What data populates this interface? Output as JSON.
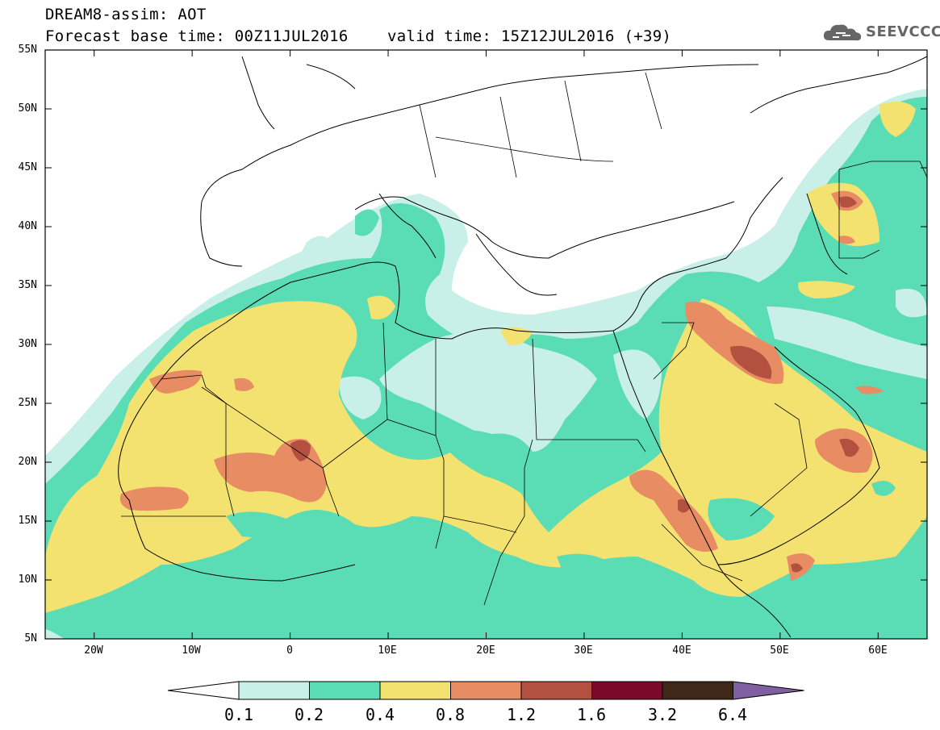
{
  "header": {
    "line1": "DREAM8-assim: AOT",
    "line2": "Forecast base time: 00Z11JUL2016",
    "line3": "valid time: 15Z12JUL2016 (+39)",
    "logo_text": "SEEVCCC",
    "logo_icon": "cloud-icon"
  },
  "map": {
    "lon_range": [
      -25,
      65
    ],
    "lat_range": [
      5,
      55
    ],
    "lat_ticks": [
      "55N",
      "50N",
      "45N",
      "40N",
      "35N",
      "30N",
      "25N",
      "20N",
      "15N",
      "10N",
      "5N"
    ],
    "lon_ticks": [
      "20W",
      "10W",
      "0",
      "10E",
      "20E",
      "30E",
      "40E",
      "50E",
      "60E"
    ],
    "colors": {
      "c01": "#c8f0e8",
      "c02": "#5adcb4",
      "c04": "#f4e270",
      "c08": "#e88c64",
      "c12": "#b45040",
      "c16": "#7a0a28",
      "c32": "#402818",
      "c64": "#8060a0"
    }
  },
  "colorbar": {
    "labels": [
      "0.1",
      "0.2",
      "0.4",
      "0.8",
      "1.2",
      "1.6",
      "3.2",
      "6.4"
    ],
    "colors": [
      "#ffffff",
      "#c8f0e8",
      "#5adcb4",
      "#f4e270",
      "#e88c64",
      "#b45040",
      "#7a0a28",
      "#402818",
      "#8060a0"
    ]
  }
}
